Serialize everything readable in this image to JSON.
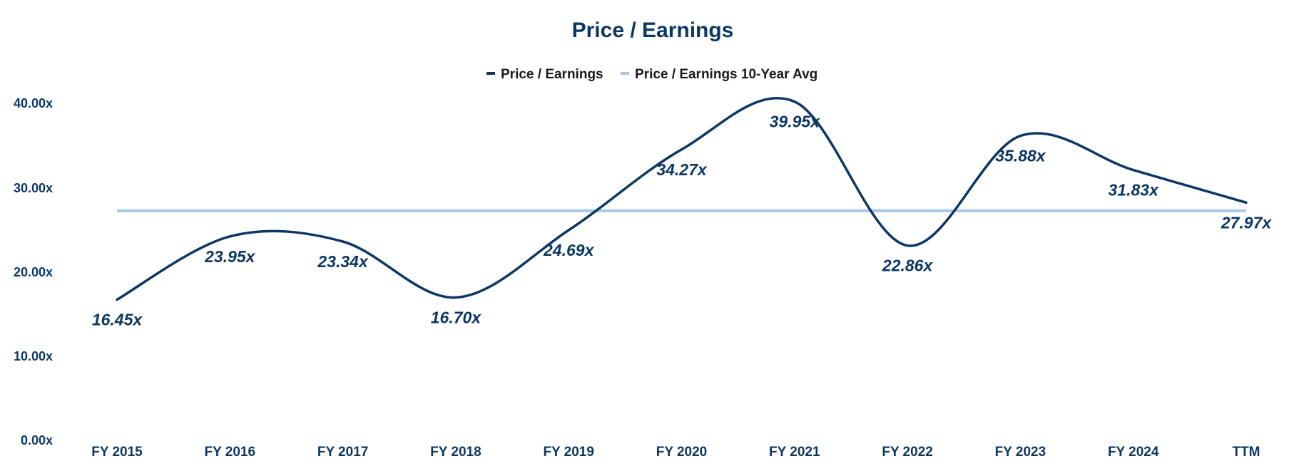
{
  "chart_data": {
    "type": "line",
    "title": "Price / Earnings",
    "categories": [
      "FY 2015",
      "FY 2016",
      "FY 2017",
      "FY 2018",
      "FY 2019",
      "FY 2020",
      "FY 2021",
      "FY 2022",
      "FY 2023",
      "FY 2024",
      "TTM"
    ],
    "series": [
      {
        "name": "Price / Earnings",
        "values": [
          16.45,
          23.95,
          23.34,
          16.7,
          24.69,
          34.27,
          39.95,
          22.86,
          35.88,
          31.83,
          27.97
        ],
        "labels": [
          "16.45x",
          "23.95x",
          "23.34x",
          "16.70x",
          "24.69x",
          "34.27x",
          "39.95x",
          "22.86x",
          "35.88x",
          "31.83x",
          "27.97x"
        ],
        "color": "#0d3763",
        "smooth": true
      },
      {
        "name": "Price / Earnings 10-Year Avg",
        "values": [
          27.0,
          27.0,
          27.0,
          27.0,
          27.0,
          27.0,
          27.0,
          27.0,
          27.0,
          27.0,
          27.0
        ],
        "color": "#a4c8e6"
      }
    ],
    "y_ticks": [
      "0.00x",
      "10.00x",
      "20.00x",
      "30.00x",
      "40.00x"
    ],
    "ylim": [
      0,
      40
    ],
    "legend_position": "top-center",
    "grid": false
  }
}
